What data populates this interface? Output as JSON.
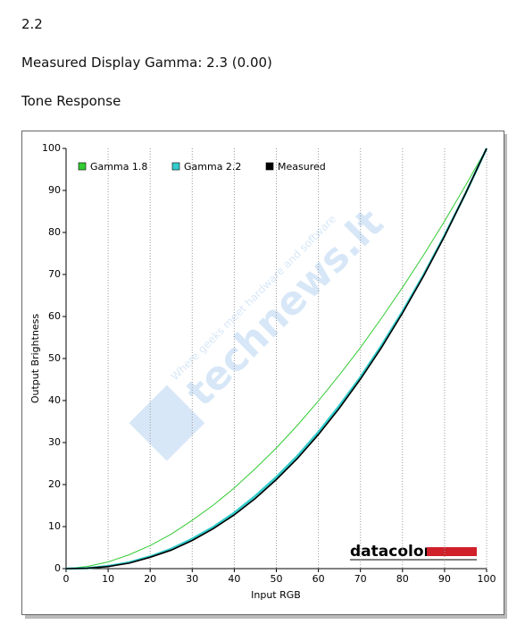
{
  "header": {
    "version": "2.2",
    "gamma": "Measured Display Gamma: 2.3 (0.00)",
    "section": "Tone Response"
  },
  "chart_data": {
    "type": "line",
    "x_label": "Input RGB",
    "y_label": "Output Brightness",
    "brand": "datacolor",
    "watermark": "technews.lt",
    "watermark_tagline": "Where geeks meet hardware and software",
    "x": [
      0,
      5,
      10,
      15,
      20,
      25,
      30,
      35,
      40,
      45,
      50,
      55,
      60,
      65,
      70,
      75,
      80,
      85,
      90,
      95,
      100
    ],
    "series": [
      {
        "name": "Gamma 1.8",
        "color": "#33cc33",
        "width": 1,
        "values": [
          0,
          0.5,
          1.6,
          3.3,
          5.5,
          8.2,
          11.5,
          15.1,
          19.2,
          23.8,
          28.7,
          34.1,
          39.9,
          46.1,
          52.6,
          59.6,
          66.9,
          74.6,
          82.7,
          91.2,
          100
        ]
      },
      {
        "name": "Gamma 2.2",
        "color": "#33cccc",
        "width": 2.5,
        "values": [
          0,
          0.1,
          0.6,
          1.5,
          2.9,
          4.7,
          7.1,
          9.9,
          13.3,
          17.3,
          21.8,
          26.8,
          32.5,
          38.8,
          45.6,
          53.1,
          61.2,
          69.9,
          79.3,
          89.3,
          100
        ]
      },
      {
        "name": "Measured",
        "color": "#000000",
        "width": 1.6,
        "values": [
          0,
          0.1,
          0.5,
          1.3,
          2.7,
          4.4,
          6.7,
          9.5,
          12.8,
          16.7,
          21.2,
          26.2,
          31.9,
          38.2,
          45.1,
          52.6,
          60.8,
          69.6,
          79.1,
          89.3,
          100
        ]
      }
    ],
    "xlim": [
      0,
      100
    ],
    "ylim": [
      0,
      100
    ],
    "xticks": [
      0,
      10,
      20,
      30,
      40,
      50,
      60,
      70,
      80,
      90,
      100
    ],
    "yticks": [
      0,
      10,
      20,
      30,
      40,
      50,
      60,
      70,
      80,
      90,
      100
    ],
    "grid": true
  }
}
